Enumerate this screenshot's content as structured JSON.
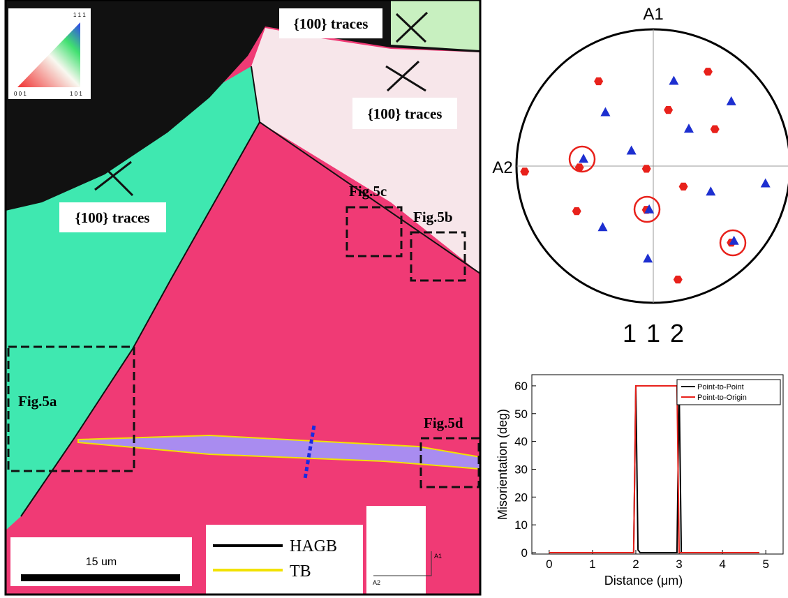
{
  "map": {
    "labels": {
      "traces_top": "{100} traces",
      "traces_right": "{100} traces",
      "traces_left": "{100} traces",
      "fig5a": "Fig.5a",
      "fig5b": "Fig.5b",
      "fig5c": "Fig.5c",
      "fig5d": "Fig.5d"
    },
    "ipf_corners": [
      "1 1 1",
      "0 0 1",
      "1 0 1"
    ],
    "scale_bar": "15 um",
    "legend": [
      "HAGB",
      "TB"
    ],
    "axes": [
      "A1",
      "A2"
    ]
  },
  "chart_data": [
    {
      "type": "scatter",
      "top_label": "A1",
      "left_label": "A2",
      "bottom_label": "1 1 2",
      "xlim": [
        -1,
        1
      ],
      "ylim": [
        -1,
        1
      ],
      "series": [
        {
          "color": "#e8211b",
          "marker": "hexagon",
          "x": [
            0.4,
            -0.4,
            0.11,
            0.45,
            -0.94,
            -0.05,
            -0.54,
            0.22,
            -0.05,
            -0.56,
            0.57,
            0.18
          ],
          "values": [
            0.69,
            0.62,
            0.41,
            0.27,
            -0.04,
            -0.02,
            -0.01,
            -0.15,
            -0.32,
            -0.33,
            -0.56,
            -0.83
          ]
        },
        {
          "color": "#1d2fd0",
          "marker": "triangle",
          "x": [
            0.15,
            0.57,
            -0.35,
            0.26,
            -0.16,
            -0.51,
            0.42,
            0.82,
            -0.03,
            -0.37,
            0.59,
            -0.04
          ],
          "values": [
            0.62,
            0.47,
            0.39,
            0.27,
            0.11,
            0.05,
            -0.19,
            -0.13,
            -0.32,
            -0.45,
            -0.55,
            -0.68
          ]
        }
      ]
    },
    {
      "type": "line",
      "xlabel": "Distance (μm)",
      "ylabel": "Misorientation (deg)",
      "xlim": [
        -0.4,
        5.4
      ],
      "ylim": [
        -0.5,
        64
      ],
      "xticks": [
        0,
        1,
        2,
        3,
        4,
        5
      ],
      "yticks": [
        0,
        10,
        20,
        30,
        40,
        50,
        60
      ],
      "x": [
        0,
        1.95,
        2.0,
        2.05,
        2.1,
        2.9,
        2.95,
        3.0,
        3.05,
        4.85
      ],
      "series": [
        {
          "name": "Point-to-Point",
          "color": "#000000",
          "values": [
            0,
            0,
            60,
            1,
            0,
            0,
            0,
            60,
            0,
            0
          ]
        },
        {
          "name": "Point-to-Origin",
          "color": "#e8211b",
          "values": [
            0,
            0,
            60,
            60,
            60,
            60,
            60,
            0,
            0,
            0
          ]
        }
      ]
    }
  ]
}
